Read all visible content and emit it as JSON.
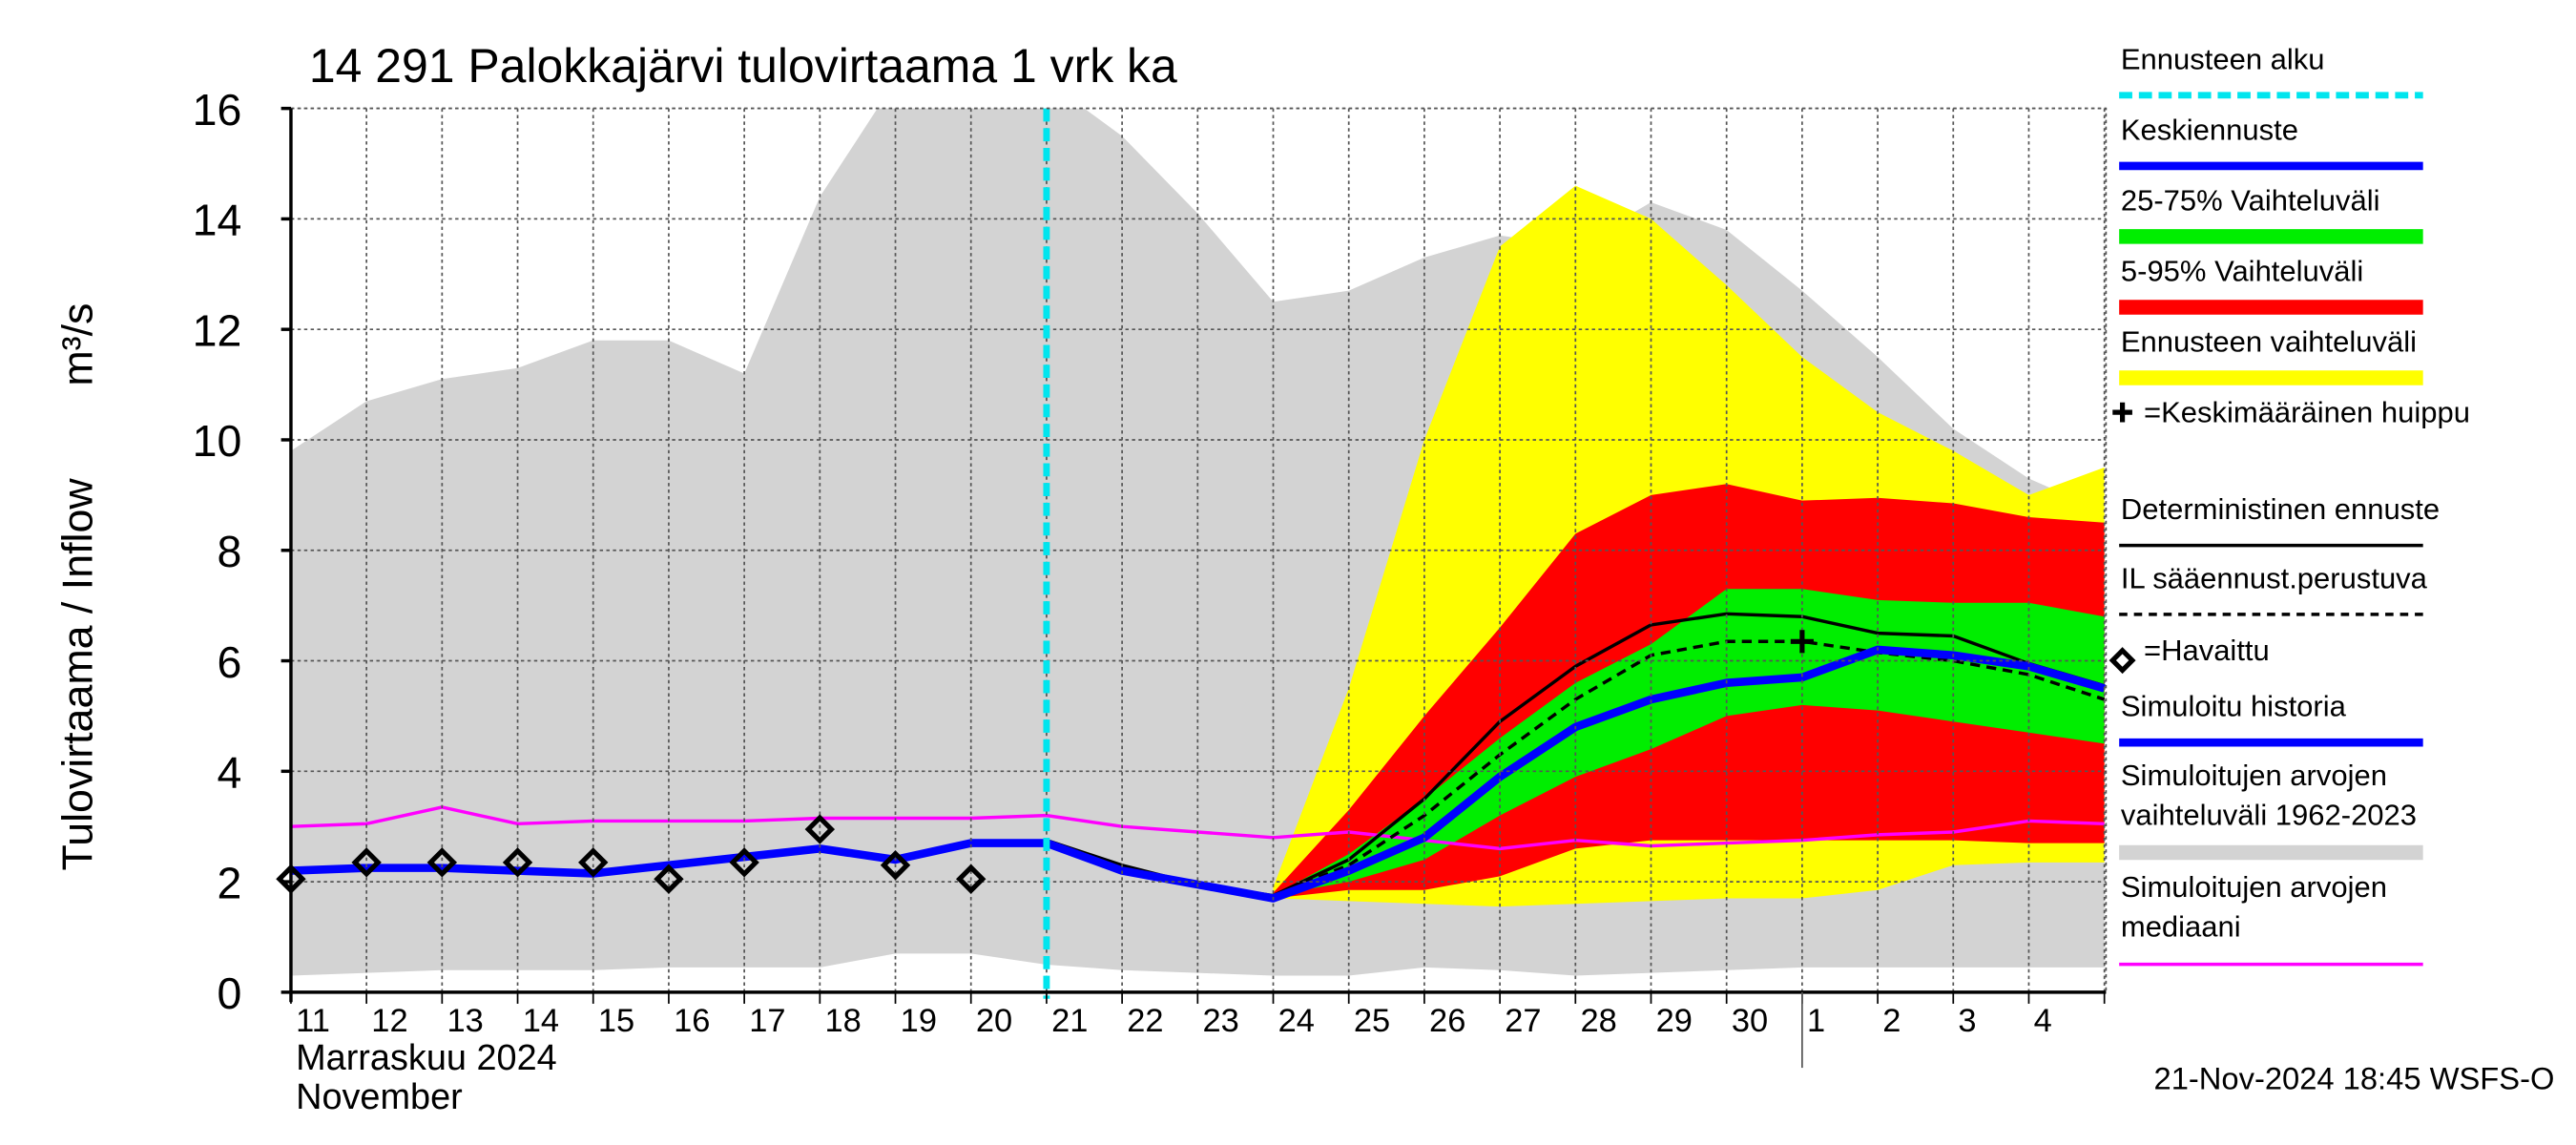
{
  "chart_data": {
    "type": "line",
    "title": "14 291 Palokkajärvi tulovirtaama 1 vrk ka",
    "y_label": "Tulovirtaama / Inflow",
    "y_unit": "m³/s",
    "month_label": "Marraskuu 2024",
    "month_label_en": "November",
    "timestamp": "21-Nov-2024 18:45 WSFS-O",
    "categories": [
      "11",
      "12",
      "13",
      "14",
      "15",
      "16",
      "17",
      "18",
      "19",
      "20",
      "21",
      "22",
      "23",
      "24",
      "25",
      "26",
      "27",
      "28",
      "29",
      "30",
      "1",
      "2",
      "3",
      "4",
      null
    ],
    "month_start": "1",
    "ylim": [
      0,
      16
    ],
    "yticks": [
      0,
      2,
      4,
      6,
      8,
      10,
      12,
      14,
      16
    ],
    "grid": true,
    "forecast_start": {
      "name": "Ennusteen alku",
      "at": "21",
      "color": "#00e5ee"
    },
    "peak": {
      "name": "=Keskimääräinen huippu",
      "x": "1",
      "y": 6.35,
      "color": "#000000"
    },
    "series": [
      {
        "name": "Keskiennuste",
        "kind": "line",
        "color": "#0000ff",
        "width": 5,
        "values": [
          null,
          null,
          null,
          null,
          null,
          null,
          null,
          null,
          null,
          null,
          2.7,
          2.2,
          1.95,
          1.7,
          2.2,
          2.8,
          3.9,
          4.8,
          5.3,
          5.6,
          5.7,
          6.2,
          6.1,
          5.9,
          5.5
        ]
      },
      {
        "name": "25-75% Vaihteluväli",
        "kind": "band",
        "color": "#00ee00",
        "low": [
          null,
          null,
          null,
          null,
          null,
          null,
          null,
          null,
          null,
          null,
          null,
          null,
          null,
          1.75,
          2.0,
          2.4,
          3.2,
          3.9,
          4.4,
          5.0,
          5.2,
          5.1,
          4.9,
          4.7,
          4.5
        ],
        "high": [
          null,
          null,
          null,
          null,
          null,
          null,
          null,
          null,
          null,
          null,
          null,
          null,
          null,
          1.75,
          2.5,
          3.5,
          4.6,
          5.6,
          6.3,
          7.3,
          7.3,
          7.1,
          7.05,
          7.05,
          6.8
        ]
      },
      {
        "name": "5-95% Vaihteluväli",
        "kind": "band",
        "color": "#ff0000",
        "low": [
          null,
          null,
          null,
          null,
          null,
          null,
          null,
          null,
          null,
          null,
          null,
          null,
          null,
          1.7,
          1.85,
          1.85,
          2.1,
          2.6,
          2.75,
          2.75,
          2.75,
          2.75,
          2.75,
          2.7,
          2.7
        ],
        "high": [
          null,
          null,
          null,
          null,
          null,
          null,
          null,
          null,
          null,
          null,
          null,
          null,
          null,
          1.8,
          3.3,
          5.0,
          6.6,
          8.3,
          9.0,
          9.2,
          8.9,
          8.95,
          8.85,
          8.6,
          8.5
        ]
      },
      {
        "name": "Ennusteen vaihteluväli",
        "kind": "band",
        "color": "#ffff00",
        "low": [
          null,
          null,
          null,
          null,
          null,
          null,
          null,
          null,
          null,
          null,
          null,
          null,
          null,
          1.7,
          1.65,
          1.6,
          1.55,
          1.6,
          1.65,
          1.7,
          1.7,
          1.85,
          2.3,
          2.35,
          2.35
        ],
        "high": [
          null,
          null,
          null,
          null,
          null,
          null,
          null,
          null,
          null,
          null,
          null,
          null,
          null,
          1.9,
          5.5,
          10.0,
          13.5,
          14.6,
          14.0,
          12.8,
          11.5,
          10.5,
          9.8,
          9.0,
          9.5
        ]
      },
      {
        "name": "Deterministinen ennuste",
        "kind": "line",
        "color": "#000000",
        "width": 2,
        "values": [
          null,
          null,
          null,
          null,
          null,
          null,
          null,
          null,
          null,
          null,
          2.75,
          2.3,
          1.95,
          1.75,
          2.4,
          3.5,
          4.9,
          5.9,
          6.65,
          6.85,
          6.8,
          6.5,
          6.45,
          5.95,
          5.55
        ]
      },
      {
        "name": "IL sääennust.perustuva",
        "kind": "line",
        "color": "#000000",
        "width": 2,
        "dashed": true,
        "values": [
          null,
          null,
          null,
          null,
          null,
          null,
          null,
          null,
          null,
          null,
          null,
          null,
          null,
          1.75,
          2.3,
          3.2,
          4.3,
          5.3,
          6.1,
          6.35,
          6.35,
          6.15,
          6.0,
          5.75,
          5.3
        ]
      },
      {
        "name": "=Havaittu",
        "kind": "markers",
        "color": "#000000",
        "values": [
          2.05,
          2.35,
          2.35,
          2.35,
          2.35,
          2.05,
          2.35,
          2.95,
          2.3,
          2.05,
          null,
          null,
          null,
          null,
          null,
          null,
          null,
          null,
          null,
          null,
          null,
          null,
          null,
          null,
          null
        ]
      },
      {
        "name": "Simuloitu historia",
        "kind": "line",
        "color": "#0000ff",
        "width": 5,
        "values": [
          2.2,
          2.25,
          2.25,
          2.2,
          2.15,
          2.3,
          2.45,
          2.6,
          2.4,
          2.7,
          2.7,
          null,
          null,
          null,
          null,
          null,
          null,
          null,
          null,
          null,
          null,
          null,
          null,
          null,
          null
        ]
      },
      {
        "name": "Simuloitujen arvojen vaihteluväli 1962-2023",
        "kind": "band",
        "color": "#d3d3d3",
        "low": [
          0.3,
          0.35,
          0.4,
          0.4,
          0.4,
          0.45,
          0.45,
          0.45,
          0.7,
          0.7,
          0.5,
          0.4,
          0.35,
          0.3,
          0.3,
          0.45,
          0.4,
          0.3,
          0.35,
          0.4,
          0.45,
          0.45,
          0.45,
          0.45,
          0.45
        ],
        "high": [
          9.8,
          10.7,
          11.1,
          11.3,
          11.8,
          11.8,
          11.2,
          14.4,
          16.5,
          16.5,
          16.5,
          15.5,
          14.1,
          12.5,
          12.7,
          13.3,
          13.7,
          13.5,
          14.3,
          13.8,
          12.7,
          11.5,
          10.2,
          9.3,
          8.7
        ]
      },
      {
        "name": "Simuloitujen arvojen mediaani",
        "kind": "line",
        "color": "#ff00ff",
        "width": 2,
        "values": [
          3.0,
          3.05,
          3.35,
          3.05,
          3.1,
          3.1,
          3.1,
          3.15,
          3.15,
          3.15,
          3.2,
          3.0,
          2.9,
          2.8,
          2.9,
          2.75,
          2.6,
          2.75,
          2.65,
          2.7,
          2.75,
          2.85,
          2.9,
          3.1,
          3.05
        ]
      }
    ]
  }
}
